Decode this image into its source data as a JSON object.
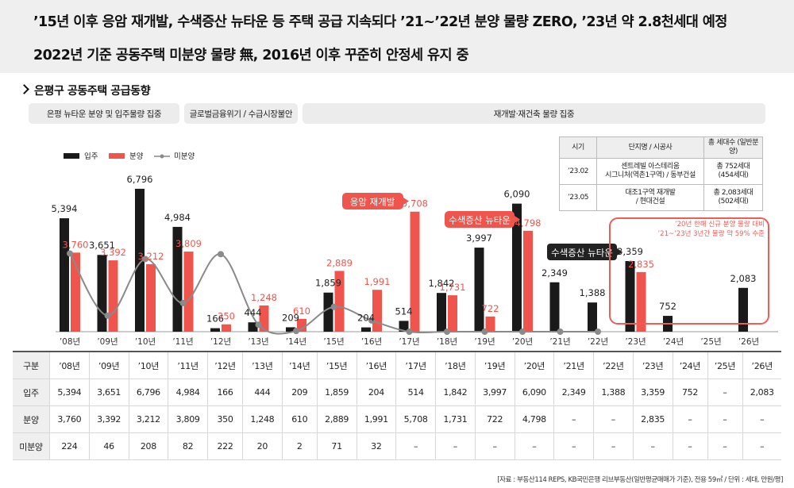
{
  "header": {
    "line1": "’15년 이후 응암 재개발, 수색증산 뉴타운 등 주택 공급 지속되다 ’21~’22년 분양 물량 ZERO, ’23년 약 2.8천세대 예정",
    "line2": "2022년 기준 공동주택 미분양 물량 無, 2016년 이후 꾸준히 안정세 유지 중"
  },
  "section_title": "은평구 공동주택 공급동향",
  "period_pills": [
    "은평 뉴타운 분양 및 입주물량 집중",
    "글로벌금융위기 / 수급시장불안",
    "재개발·재건축 물량 집중"
  ],
  "colors": {
    "moveins": "#1a1a1a",
    "presales": "#f0554d",
    "unsold": "#8a8a8a",
    "callout": "#f0554d",
    "dark_callout": "#222222",
    "box": "#ee5e57"
  },
  "info_table": {
    "headers": [
      "시기",
      "단지명 / 시공사",
      "총 세대수 (일반분양)"
    ],
    "rows": [
      [
        "’23.02",
        "센트레빌 아스테리움\n시그니처(역촌1구역) / 동부건설",
        "총 752세대\n(454세대)"
      ],
      [
        "’23.05",
        "대조1구역 재개발\n/ 현대건설",
        "총 2,083세대\n(502세대)"
      ]
    ]
  },
  "annotations": {
    "eungam": "응암 재개발",
    "suseek1": "수색증산 뉴타운",
    "suseek2": "수색증산 뉴타운",
    "box_line1": "’20년 한해 신규 분양 물량 대비",
    "box_line2": "’21~’23년 3년간 물량 약 59% 수준"
  },
  "chart_data": {
    "type": "bar",
    "categories": [
      "’08년",
      "’09년",
      "’10년",
      "’11년",
      "’12년",
      "’13년",
      "’14년",
      "’15년",
      "’16년",
      "’17년",
      "’18년",
      "’19년",
      "’20년",
      "’21년",
      "’22년",
      "’23년",
      "’24년",
      "’25년",
      "’26년"
    ],
    "series": [
      {
        "name": "입주",
        "type": "bar",
        "values": [
          5394,
          3651,
          6796,
          4984,
          166,
          444,
          209,
          1859,
          204,
          514,
          1842,
          3997,
          6090,
          2349,
          1388,
          3359,
          752,
          null,
          2083
        ]
      },
      {
        "name": "분양",
        "type": "bar",
        "values": [
          3760,
          3392,
          3212,
          3809,
          350,
          1248,
          610,
          2889,
          1991,
          5708,
          1731,
          722,
          4798,
          null,
          null,
          2835,
          null,
          null,
          null
        ]
      },
      {
        "name": "미분양",
        "type": "line",
        "values": [
          224,
          46,
          208,
          82,
          222,
          20,
          2,
          71,
          32,
          0,
          0,
          0,
          0,
          0,
          0,
          null,
          null,
          null,
          null
        ]
      }
    ],
    "legend_position": "top-left",
    "grid": false
  },
  "table": {
    "header_label": "구분",
    "rows": [
      {
        "label": "입주",
        "values": [
          "5,394",
          "3,651",
          "6,796",
          "4,984",
          "166",
          "444",
          "209",
          "1,859",
          "204",
          "514",
          "1,842",
          "3,997",
          "6,090",
          "2,349",
          "1,388",
          "3,359",
          "752",
          "–",
          "2,083"
        ]
      },
      {
        "label": "분양",
        "values": [
          "3,760",
          "3,392",
          "3,212",
          "3,809",
          "350",
          "1,248",
          "610",
          "2,889",
          "1,991",
          "5,708",
          "1,731",
          "722",
          "4,798",
          "–",
          "–",
          "2,835",
          "–",
          "–",
          "–"
        ]
      },
      {
        "label": "미분양",
        "values": [
          "224",
          "46",
          "208",
          "82",
          "222",
          "20",
          "2",
          "71",
          "32",
          "–",
          "–",
          "–",
          "–",
          "–",
          "–",
          "–",
          "–",
          "–",
          "–"
        ]
      }
    ]
  },
  "source": "[자료 : 부동산114 REPS, KB국민은행 리브부동산(일반평균매매가 기준), 전용 59㎡ / 단위 : 세대, 만원/평]"
}
